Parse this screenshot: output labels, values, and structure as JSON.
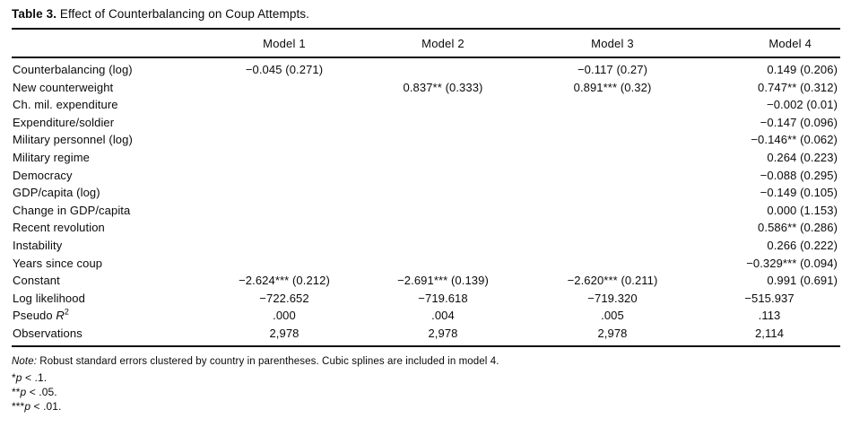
{
  "title": {
    "label": "Table 3.",
    "caption": " Effect of Counterbalancing on Coup Attempts."
  },
  "table": {
    "columns": [
      "",
      "Model 1",
      "Model 2",
      "Model 3",
      "Model 4"
    ],
    "rows": [
      {
        "label": "Counterbalancing (log)",
        "type": "coef",
        "values": [
          "−0.045 (0.271)",
          "",
          "−0.117 (0.27)",
          "0.149 (0.206)"
        ]
      },
      {
        "label": "New counterweight",
        "type": "coef",
        "values": [
          "",
          "0.837** (0.333)",
          "0.891*** (0.32)",
          "0.747** (0.312)"
        ]
      },
      {
        "label": "Ch. mil. expenditure",
        "type": "coef",
        "values": [
          "",
          "",
          "",
          "−0.002 (0.01)"
        ]
      },
      {
        "label": "Expenditure/soldier",
        "type": "coef",
        "values": [
          "",
          "",
          "",
          "−0.147 (0.096)"
        ]
      },
      {
        "label": "Military personnel (log)",
        "type": "coef",
        "values": [
          "",
          "",
          "",
          "−0.146** (0.062)"
        ]
      },
      {
        "label": "Military regime",
        "type": "coef",
        "values": [
          "",
          "",
          "",
          "0.264 (0.223)"
        ]
      },
      {
        "label": "Democracy",
        "type": "coef",
        "values": [
          "",
          "",
          "",
          "−0.088 (0.295)"
        ]
      },
      {
        "label": "GDP/capita (log)",
        "type": "coef",
        "values": [
          "",
          "",
          "",
          "−0.149 (0.105)"
        ]
      },
      {
        "label": "Change in GDP/capita",
        "type": "coef",
        "values": [
          "",
          "",
          "",
          "0.000 (1.153)"
        ]
      },
      {
        "label": "Recent revolution",
        "type": "coef",
        "values": [
          "",
          "",
          "",
          "0.586** (0.286)"
        ]
      },
      {
        "label": "Instability",
        "type": "coef",
        "values": [
          "",
          "",
          "",
          "0.266 (0.222)"
        ]
      },
      {
        "label": "Years since coup",
        "type": "coef",
        "values": [
          "",
          "",
          "",
          "−0.329*** (0.094)"
        ]
      },
      {
        "label": "Constant",
        "type": "coef",
        "values": [
          "−2.624*** (0.212)",
          "−2.691*** (0.139)",
          "−2.620*** (0.211)",
          "0.991 (0.691)"
        ]
      },
      {
        "label": "Log likelihood",
        "type": "stat",
        "values": [
          "−722.652",
          "−719.618",
          "−719.320",
          "−515.937"
        ]
      },
      {
        "label": "Pseudo ",
        "label_var": "R",
        "label_sup": "2",
        "type": "stat",
        "values": [
          ".000",
          ".004",
          ".005",
          ".113"
        ]
      },
      {
        "label": "Observations",
        "type": "stat",
        "values": [
          "2,978",
          "2,978",
          "2,978",
          "2,114"
        ]
      }
    ]
  },
  "footnotes": {
    "note_prefix": "Note:",
    "note_text": " Robust standard errors clustered by country in parentheses. Cubic splines are included in model 4.",
    "sig_lines": [
      {
        "stars": "*",
        "var": "p",
        "rule": " < .1."
      },
      {
        "stars": "**",
        "var": "p",
        "rule": " < .05."
      },
      {
        "stars": "***",
        "var": "p",
        "rule": " < .01."
      }
    ]
  }
}
